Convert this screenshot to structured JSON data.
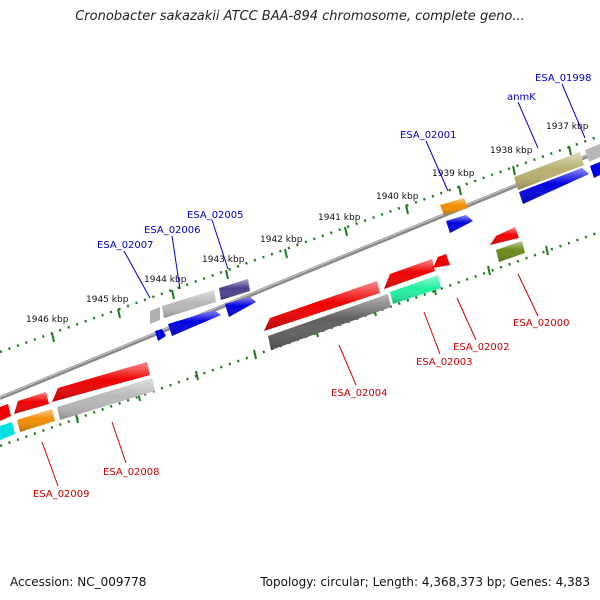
{
  "title": "Cronobacter sakazakii ATCC BAA-894 chromosome, complete geno...",
  "footer": {
    "accession": "Accession: NC_009778",
    "topology": "Topology: circular; Length: 4,368,373 bp; Genes: 4,383"
  },
  "colors": {
    "backbone": "#8a8a8a",
    "tick_mark": "#1f7a1f",
    "forward_label": "#0000c8",
    "reverse_label": "#c80000"
  },
  "ruler": [
    {
      "label": "1946 kbp"
    },
    {
      "label": "1945 kbp"
    },
    {
      "label": "1944 kbp"
    },
    {
      "label": "1943 kbp"
    },
    {
      "label": "1942 kbp"
    },
    {
      "label": "1941 kbp"
    },
    {
      "label": "1940 kbp"
    },
    {
      "label": "1939 kbp"
    },
    {
      "label": "1938 kbp"
    },
    {
      "label": "1937 kbp"
    }
  ],
  "forward_labels": [
    {
      "text": "ESA_02007"
    },
    {
      "text": "ESA_02006"
    },
    {
      "text": "ESA_02005"
    },
    {
      "text": "ESA_02001"
    },
    {
      "text": "anmK"
    },
    {
      "text": "ESA_01998"
    }
  ],
  "reverse_labels": [
    {
      "text": "ESA_02009"
    },
    {
      "text": "ESA_02008"
    },
    {
      "text": "ESA_02004"
    },
    {
      "text": "ESA_02003"
    },
    {
      "text": "ESA_02002"
    },
    {
      "text": "ESA_02000"
    }
  ]
}
